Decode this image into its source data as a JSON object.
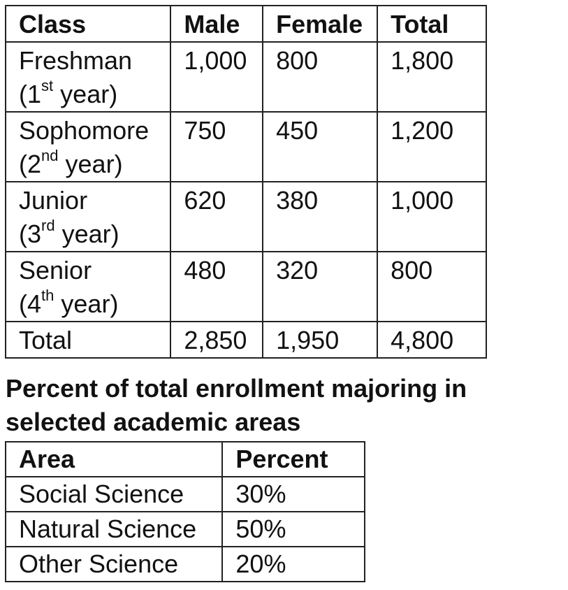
{
  "enrollment_table": {
    "headers": [
      "Class",
      "Male",
      "Female",
      "Total"
    ],
    "rows": [
      {
        "class": "Freshman",
        "year_num": "1",
        "year_suffix": "st",
        "year_word": "year",
        "male": "1,000",
        "female": "800",
        "total": "1,800"
      },
      {
        "class": "Sophomore",
        "year_num": "2",
        "year_suffix": "nd",
        "year_word": "year",
        "male": "750",
        "female": "450",
        "total": "1,200"
      },
      {
        "class": "Junior",
        "year_num": "3",
        "year_suffix": "rd",
        "year_word": "year",
        "male": "620",
        "female": "380",
        "total": "1,000"
      },
      {
        "class": "Senior",
        "year_num": "4",
        "year_suffix": "th",
        "year_word": "year",
        "male": "480",
        "female": "320",
        "total": "800"
      }
    ],
    "total_row": {
      "label": "Total",
      "male": "2,850",
      "female": "1,950",
      "total": "4,800"
    }
  },
  "section_title": "Percent of total enrollment majoring in selected academic areas",
  "area_table": {
    "headers": [
      "Area",
      "Percent"
    ],
    "rows": [
      {
        "area": "Social Science",
        "percent": "30%"
      },
      {
        "area": "Natural Science",
        "percent": "50%"
      },
      {
        "area": "Other Science",
        "percent": "20%"
      }
    ]
  }
}
